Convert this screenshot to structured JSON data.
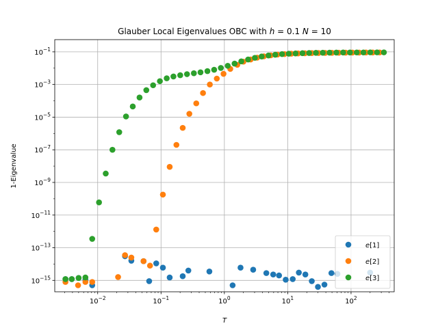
{
  "chart_data": {
    "type": "scatter",
    "title_parts": [
      "Glauber Local Eigenvalues OBC  with ",
      "h",
      " = 0.1 ",
      "N",
      " =  10"
    ],
    "xlabel": "T",
    "ylabel": "1-Eigenvalue",
    "xscale": "log",
    "yscale": "log",
    "xlim": [
      0.0021,
      480
    ],
    "ylim": [
      2e-16,
      0.56
    ],
    "grid": true,
    "legend_position": "lower right",
    "x_ticks": [
      {
        "value": 0.01,
        "base": "10",
        "exp": "−2"
      },
      {
        "value": 0.1,
        "base": "10",
        "exp": "−1"
      },
      {
        "value": 1,
        "base": "10",
        "exp": "0"
      },
      {
        "value": 10,
        "base": "10",
        "exp": "1"
      },
      {
        "value": 100,
        "base": "10",
        "exp": "2"
      }
    ],
    "y_ticks": [
      {
        "value": 1e-15,
        "base": "10",
        "exp": "−15"
      },
      {
        "value": 1e-13,
        "base": "10",
        "exp": "−13"
      },
      {
        "value": 1e-11,
        "base": "10",
        "exp": "−11"
      },
      {
        "value": 1e-09,
        "base": "10",
        "exp": "−9"
      },
      {
        "value": 1e-07,
        "base": "10",
        "exp": "−7"
      },
      {
        "value": 1e-05,
        "base": "10",
        "exp": "−5"
      },
      {
        "value": 0.001,
        "base": "10",
        "exp": "−3"
      },
      {
        "value": 0.1,
        "base": "10",
        "exp": "−1"
      }
    ],
    "series": [
      {
        "name": "e[1]",
        "color": "#1f77b4",
        "points": [
          [
            0.0031,
            1.2e-15
          ],
          [
            0.0039,
            1.2e-15
          ],
          [
            0.005,
            1.4e-15
          ],
          [
            0.0064,
            1.1e-15
          ],
          [
            0.0082,
            5e-16
          ],
          [
            0.027,
            3e-14
          ],
          [
            0.034,
            1.6e-14
          ],
          [
            0.053,
            1.5e-14
          ],
          [
            0.065,
            9e-16
          ],
          [
            0.084,
            1.1e-14
          ],
          [
            0.107,
            6e-15
          ],
          [
            0.137,
            1.5e-15
          ],
          [
            0.22,
            1.8e-15
          ],
          [
            0.27,
            4e-15
          ],
          [
            0.58,
            3.5e-15
          ],
          [
            1.35,
            5e-16
          ],
          [
            1.8,
            6e-15
          ],
          [
            2.85,
            4.5e-15
          ],
          [
            4.6,
            2.8e-15
          ],
          [
            5.9,
            2.3e-15
          ],
          [
            7.3,
            2e-15
          ],
          [
            9.3,
            1.1e-15
          ],
          [
            12,
            1.2e-15
          ],
          [
            15,
            3e-15
          ],
          [
            19,
            2.3e-15
          ],
          [
            24,
            9e-16
          ],
          [
            30,
            4e-16
          ],
          [
            38,
            5.5e-16
          ],
          [
            49,
            2.8e-15
          ],
          [
            61,
            2.5e-15
          ],
          [
            200,
            3e-15
          ]
        ]
      },
      {
        "name": "e[2]",
        "color": "#ff7f0e",
        "points": [
          [
            0.0031,
            8e-16
          ],
          [
            0.0049,
            5e-16
          ],
          [
            0.0064,
            8e-16
          ],
          [
            0.0082,
            8e-16
          ],
          [
            0.021,
            1.6e-15
          ],
          [
            0.027,
            3.5e-14
          ],
          [
            0.034,
            2.5e-14
          ],
          [
            0.053,
            1.5e-14
          ],
          [
            0.067,
            8e-15
          ],
          [
            0.084,
            1.3e-12
          ],
          [
            0.107,
            1.8e-10
          ],
          [
            0.137,
            9e-09
          ],
          [
            0.175,
            2e-07
          ],
          [
            0.22,
            2.2e-06
          ],
          [
            0.28,
            1.6e-05
          ],
          [
            0.36,
            7e-05
          ],
          [
            0.46,
            0.0003
          ],
          [
            0.59,
            0.001
          ],
          [
            0.76,
            0.0023
          ],
          [
            0.97,
            0.0045
          ],
          [
            1.24,
            0.009
          ],
          [
            1.6,
            0.016
          ],
          [
            2.0,
            0.025
          ],
          [
            2.6,
            0.034
          ],
          [
            3.3,
            0.044
          ],
          [
            4.2,
            0.053
          ],
          [
            5.4,
            0.061
          ],
          [
            6.9,
            0.068
          ],
          [
            8.9,
            0.073
          ],
          [
            11.4,
            0.077
          ],
          [
            14.6,
            0.08
          ],
          [
            18.7,
            0.082
          ],
          [
            24,
            0.084
          ],
          [
            30.6,
            0.085
          ],
          [
            39,
            0.086
          ],
          [
            50,
            0.087
          ],
          [
            64,
            0.088
          ],
          [
            82,
            0.089
          ],
          [
            105,
            0.09
          ],
          [
            134,
            0.09
          ],
          [
            172,
            0.091
          ],
          [
            220,
            0.091
          ],
          [
            282,
            0.092
          ]
        ]
      },
      {
        "name": "e[3]",
        "color": "#2ca02c",
        "points": [
          [
            0.0031,
            1.2e-15
          ],
          [
            0.0039,
            1.2e-15
          ],
          [
            0.005,
            1.4e-15
          ],
          [
            0.0064,
            1.5e-15
          ],
          [
            0.0082,
            3.5e-13
          ],
          [
            0.0105,
            6e-11
          ],
          [
            0.0134,
            3.5e-09
          ],
          [
            0.0171,
            1e-07
          ],
          [
            0.0219,
            1.2e-06
          ],
          [
            0.028,
            1.1e-05
          ],
          [
            0.0358,
            4.5e-05
          ],
          [
            0.0458,
            0.00016
          ],
          [
            0.0586,
            0.00045
          ],
          [
            0.075,
            0.0009
          ],
          [
            0.096,
            0.0016
          ],
          [
            0.123,
            0.0024
          ],
          [
            0.157,
            0.0031
          ],
          [
            0.201,
            0.0037
          ],
          [
            0.257,
            0.0043
          ],
          [
            0.33,
            0.0049
          ],
          [
            0.42,
            0.0056
          ],
          [
            0.54,
            0.0066
          ],
          [
            0.69,
            0.008
          ],
          [
            0.88,
            0.0103
          ],
          [
            1.13,
            0.014
          ],
          [
            1.45,
            0.019
          ],
          [
            1.85,
            0.026
          ],
          [
            2.37,
            0.034
          ],
          [
            3.03,
            0.043
          ],
          [
            3.88,
            0.052
          ],
          [
            4.97,
            0.06
          ],
          [
            6.36,
            0.067
          ],
          [
            8.14,
            0.073
          ],
          [
            10.4,
            0.077
          ],
          [
            13.3,
            0.08
          ],
          [
            17.1,
            0.083
          ],
          [
            21.8,
            0.085
          ],
          [
            27.9,
            0.087
          ],
          [
            35.8,
            0.088
          ],
          [
            45.8,
            0.089
          ],
          [
            58.6,
            0.09
          ],
          [
            75,
            0.091
          ],
          [
            96,
            0.091
          ],
          [
            123,
            0.092
          ],
          [
            157,
            0.092
          ],
          [
            201,
            0.093
          ],
          [
            257,
            0.093
          ],
          [
            330,
            0.093
          ]
        ]
      }
    ]
  }
}
